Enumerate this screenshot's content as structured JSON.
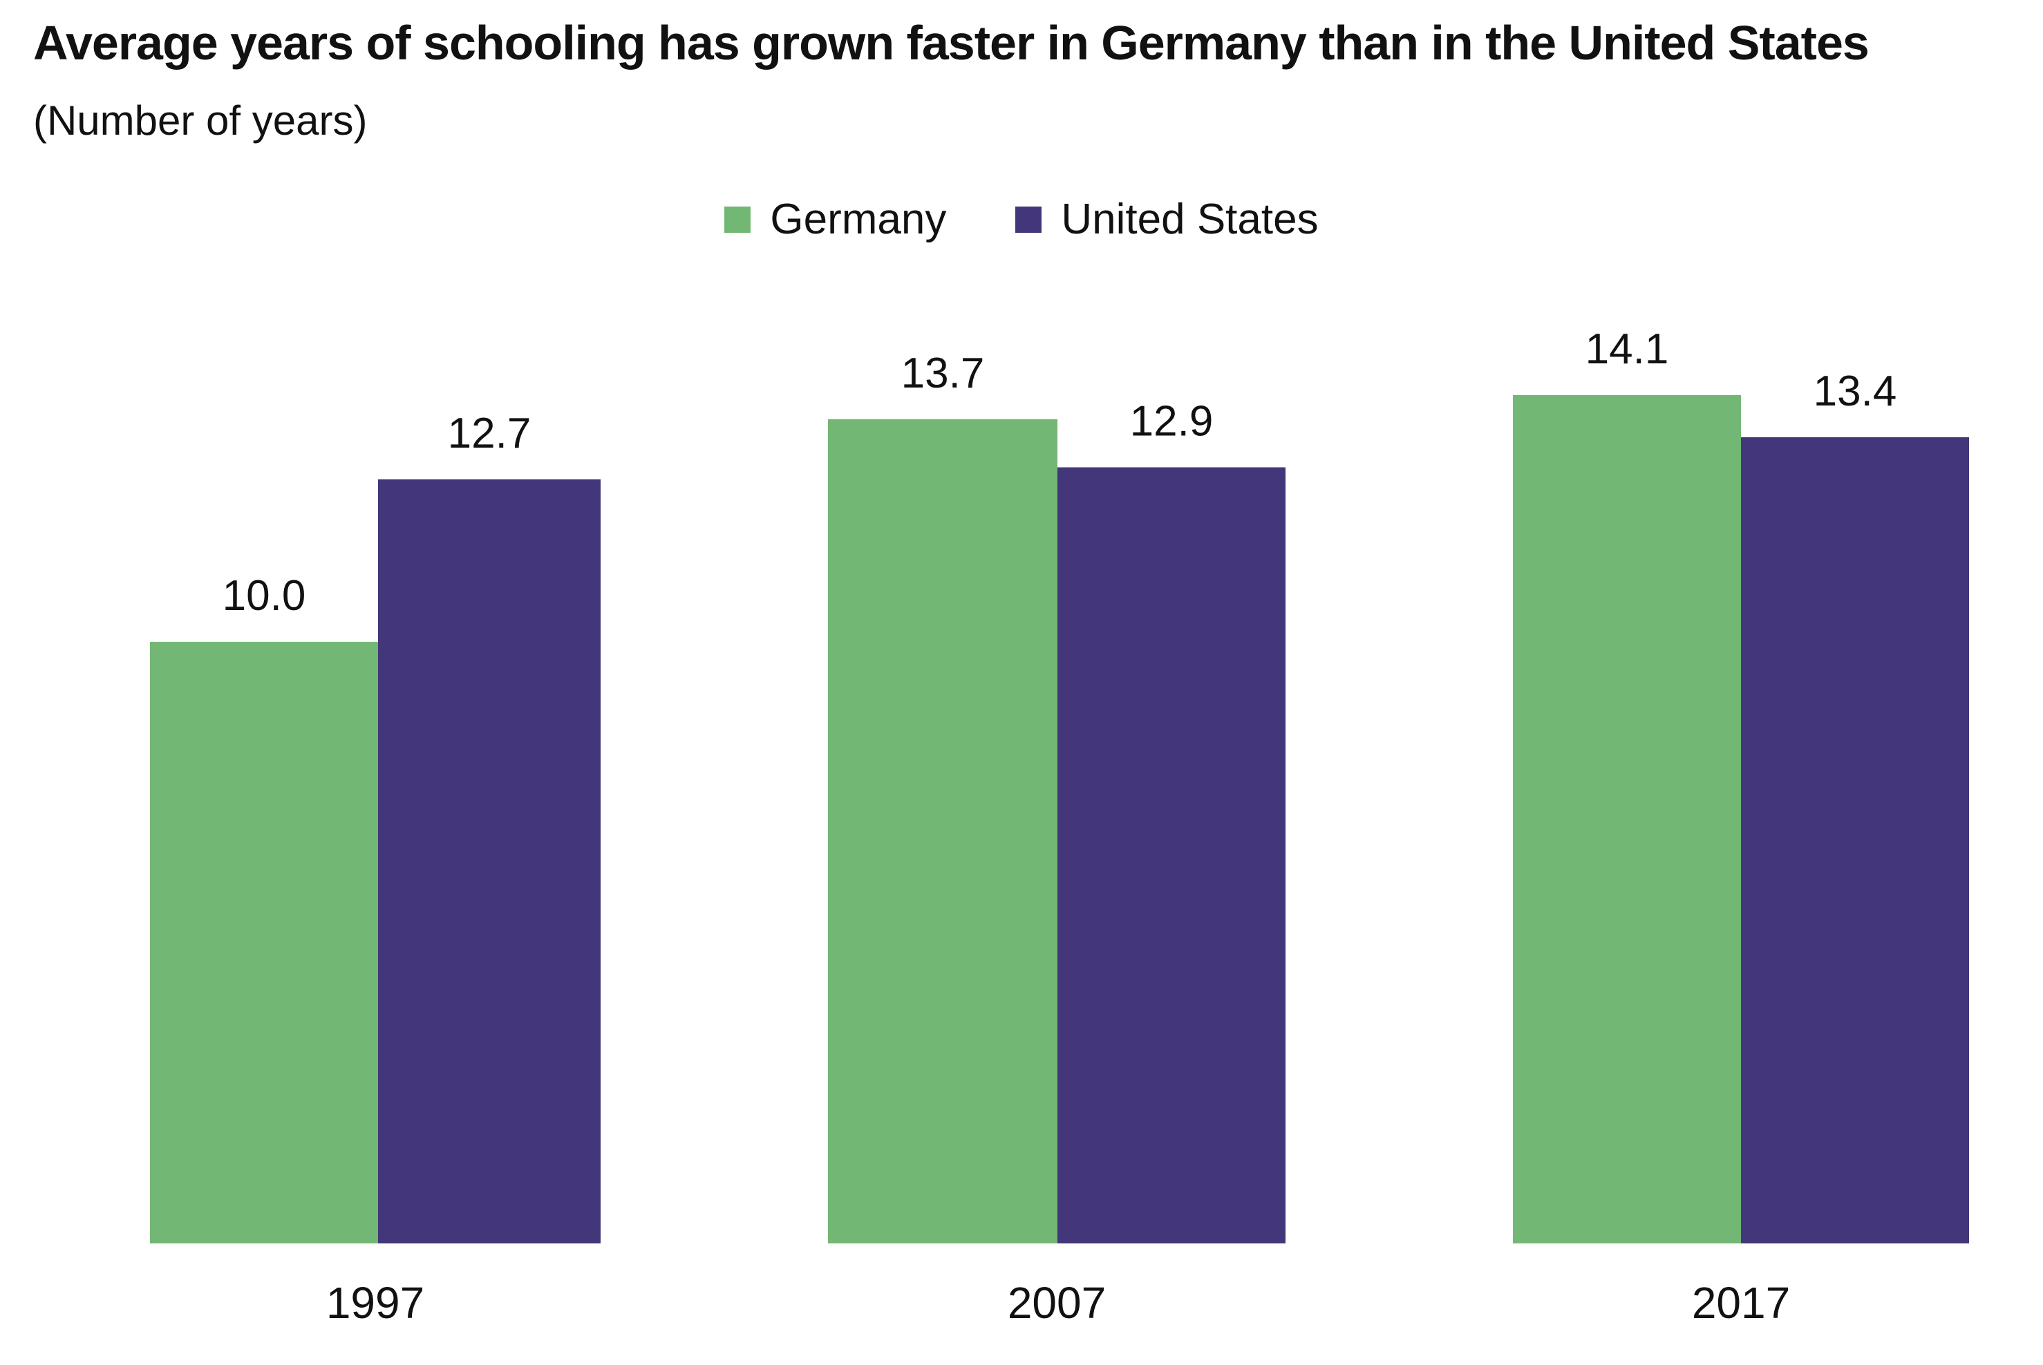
{
  "title": "Average years of schooling has grown faster in Germany than in the United States",
  "subtitle": "(Number of years)",
  "colors": {
    "germany": "#72b774",
    "united_states": "#43367a"
  },
  "chart_data": {
    "type": "bar",
    "title": "Average years of schooling has grown faster in Germany than in the United States",
    "subtitle": "(Number of years)",
    "categories": [
      "1997",
      "2007",
      "2017"
    ],
    "series": [
      {
        "name": "Germany",
        "values": [
          10.0,
          13.7,
          14.1
        ],
        "labels": [
          "10.0",
          "13.7",
          "14.1"
        ],
        "color": "#72b774"
      },
      {
        "name": "United States",
        "values": [
          12.7,
          12.9,
          13.4
        ],
        "labels": [
          "12.7",
          "12.9",
          "13.4"
        ],
        "color": "#43367a"
      }
    ],
    "xlabel": "",
    "ylabel": "",
    "ylim": [
      0,
      14.1
    ],
    "grid": false,
    "legend_position": "top-center"
  }
}
